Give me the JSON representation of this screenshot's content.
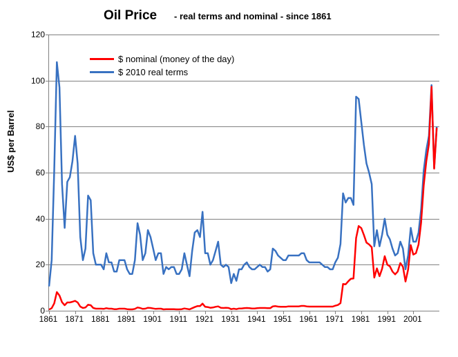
{
  "title_main": "Oil Price",
  "title_sub": "- real terms and nominal  - since 1861",
  "y_axis_label": "US$ per Barrel",
  "chart": {
    "type": "line",
    "background_color": "#ffffff",
    "grid_color": "#808080",
    "xlim": [
      1861,
      2011
    ],
    "ylim": [
      0,
      120
    ],
    "ytick_step": 20,
    "y_ticks": [
      0,
      20,
      40,
      60,
      80,
      100,
      120
    ],
    "x_ticks": [
      1861,
      1871,
      1881,
      1891,
      1901,
      1911,
      1921,
      1931,
      1941,
      1951,
      1961,
      1971,
      1981,
      1991,
      2001
    ],
    "line_width": 2.5,
    "series": [
      {
        "name": "$ nominal (money of the day)",
        "color": "#ff0000",
        "years": [
          1861,
          1862,
          1863,
          1864,
          1865,
          1866,
          1867,
          1868,
          1869,
          1870,
          1871,
          1872,
          1873,
          1874,
          1875,
          1876,
          1877,
          1878,
          1879,
          1880,
          1881,
          1882,
          1883,
          1884,
          1885,
          1886,
          1887,
          1888,
          1889,
          1890,
          1891,
          1892,
          1893,
          1894,
          1895,
          1896,
          1897,
          1898,
          1899,
          1900,
          1901,
          1902,
          1903,
          1904,
          1905,
          1906,
          1907,
          1908,
          1909,
          1910,
          1911,
          1912,
          1913,
          1914,
          1915,
          1916,
          1917,
          1918,
          1919,
          1920,
          1921,
          1922,
          1923,
          1924,
          1925,
          1926,
          1927,
          1928,
          1929,
          1930,
          1931,
          1932,
          1933,
          1934,
          1935,
          1936,
          1937,
          1938,
          1939,
          1940,
          1941,
          1942,
          1943,
          1944,
          1945,
          1946,
          1947,
          1948,
          1949,
          1950,
          1951,
          1952,
          1953,
          1954,
          1955,
          1956,
          1957,
          1958,
          1959,
          1960,
          1961,
          1962,
          1963,
          1964,
          1965,
          1966,
          1967,
          1968,
          1969,
          1970,
          1971,
          1972,
          1973,
          1974,
          1975,
          1976,
          1977,
          1978,
          1979,
          1980,
          1981,
          1982,
          1983,
          1984,
          1985,
          1986,
          1987,
          1988,
          1989,
          1990,
          1991,
          1992,
          1993,
          1994,
          1995,
          1996,
          1997,
          1998,
          1999,
          2000,
          2001,
          2002,
          2003,
          2004,
          2005,
          2006,
          2007,
          2008,
          2009,
          2010
        ],
        "values": [
          0.5,
          1.1,
          3.2,
          8.1,
          6.6,
          3.7,
          2.4,
          3.6,
          3.6,
          3.9,
          4.3,
          3.6,
          1.8,
          1.2,
          1.4,
          2.6,
          2.4,
          1.2,
          0.9,
          0.9,
          0.9,
          0.8,
          1.1,
          0.9,
          0.9,
          0.7,
          0.7,
          0.9,
          0.9,
          0.9,
          0.7,
          0.6,
          0.6,
          0.8,
          1.4,
          1.2,
          0.8,
          0.9,
          1.3,
          1.2,
          1.0,
          0.8,
          0.9,
          0.9,
          0.6,
          0.7,
          0.7,
          0.7,
          0.7,
          0.6,
          0.6,
          0.7,
          1.0,
          0.8,
          0.6,
          1.1,
          1.6,
          2.0,
          2.0,
          3.1,
          1.7,
          1.6,
          1.3,
          1.4,
          1.7,
          1.9,
          1.3,
          1.2,
          1.3,
          1.2,
          0.7,
          0.9,
          0.7,
          1.0,
          1.0,
          1.1,
          1.2,
          1.1,
          1.0,
          1.0,
          1.1,
          1.2,
          1.2,
          1.2,
          1.1,
          1.1,
          1.9,
          2.0,
          1.8,
          1.7,
          1.7,
          1.7,
          1.9,
          1.9,
          1.9,
          1.9,
          1.9,
          2.1,
          2.1,
          1.9,
          1.8,
          1.8,
          1.8,
          1.8,
          1.8,
          1.8,
          1.8,
          1.8,
          1.8,
          1.8,
          2.2,
          2.5,
          3.3,
          11.6,
          11.5,
          12.8,
          13.9,
          14.0,
          31.6,
          36.8,
          35.9,
          32.9,
          29.6,
          28.8,
          27.6,
          14.4,
          18.4,
          15.0,
          18.2,
          23.7,
          20.0,
          19.3,
          17.0,
          15.8,
          17.0,
          20.7,
          19.1,
          12.7,
          17.9,
          28.5,
          24.4,
          25.0,
          28.8,
          38.3,
          54.5,
          65.1,
          72.4,
          97.3,
          61.7,
          79.5
        ]
      },
      {
        "name": "$ 2010 real terms",
        "color": "#3871c1",
        "years": [
          1861,
          1862,
          1863,
          1864,
          1865,
          1866,
          1867,
          1868,
          1869,
          1870,
          1871,
          1872,
          1873,
          1874,
          1875,
          1876,
          1877,
          1878,
          1879,
          1880,
          1881,
          1882,
          1883,
          1884,
          1885,
          1886,
          1887,
          1888,
          1889,
          1890,
          1891,
          1892,
          1893,
          1894,
          1895,
          1896,
          1897,
          1898,
          1899,
          1900,
          1901,
          1902,
          1903,
          1904,
          1905,
          1906,
          1907,
          1908,
          1909,
          1910,
          1911,
          1912,
          1913,
          1914,
          1915,
          1916,
          1917,
          1918,
          1919,
          1920,
          1921,
          1922,
          1923,
          1924,
          1925,
          1926,
          1927,
          1928,
          1929,
          1930,
          1931,
          1932,
          1933,
          1934,
          1935,
          1936,
          1937,
          1938,
          1939,
          1940,
          1941,
          1942,
          1943,
          1944,
          1945,
          1946,
          1947,
          1948,
          1949,
          1950,
          1951,
          1952,
          1953,
          1954,
          1955,
          1956,
          1957,
          1958,
          1959,
          1960,
          1961,
          1962,
          1963,
          1964,
          1965,
          1966,
          1967,
          1968,
          1969,
          1970,
          1971,
          1972,
          1973,
          1974,
          1975,
          1976,
          1977,
          1978,
          1979,
          1980,
          1981,
          1982,
          1983,
          1984,
          1985,
          1986,
          1987,
          1988,
          1989,
          1990,
          1991,
          1992,
          1993,
          1994,
          1995,
          1996,
          1997,
          1998,
          1999,
          2000,
          2001,
          2002,
          2003,
          2004,
          2005,
          2006,
          2007,
          2008,
          2009,
          2010
        ],
        "values": [
          10.6,
          22,
          61,
          108,
          97,
          55,
          36,
          56,
          58,
          65,
          76,
          64,
          32,
          22,
          27,
          50,
          48,
          25,
          20,
          20,
          20,
          18,
          25,
          21,
          21,
          17,
          17,
          22,
          22,
          22,
          18,
          16,
          16,
          22,
          38,
          33,
          22,
          25,
          35,
          32,
          27,
          22,
          25,
          25,
          16,
          19,
          18,
          19,
          19,
          16,
          16,
          18,
          25,
          20,
          15,
          26,
          34,
          35,
          32,
          43,
          25,
          25,
          20,
          22,
          26,
          30,
          20,
          19,
          20,
          19,
          12,
          16,
          13,
          18,
          18,
          20,
          21,
          19,
          18,
          18,
          19,
          20,
          19,
          19,
          17,
          18,
          27,
          26,
          24,
          23,
          22,
          22,
          24,
          24,
          24,
          24,
          24,
          25,
          25,
          22,
          21,
          21,
          21,
          21,
          21,
          20,
          19,
          19,
          18,
          18,
          21,
          23,
          29,
          51,
          47,
          49,
          49,
          46,
          93,
          92,
          82,
          72,
          64,
          60,
          55,
          28,
          35,
          28,
          33,
          40,
          33,
          31,
          27,
          24,
          25,
          30,
          27,
          18,
          24,
          36,
          30,
          30,
          34,
          44,
          61,
          70,
          76,
          98,
          62,
          80
        ]
      }
    ],
    "legend": {
      "position": "top-left-inside",
      "fontsize": 13
    },
    "title_fontsize_main": 19,
    "title_fontsize_sub": 13,
    "axis_label_fontsize": 13,
    "tick_fontsize": 12
  }
}
